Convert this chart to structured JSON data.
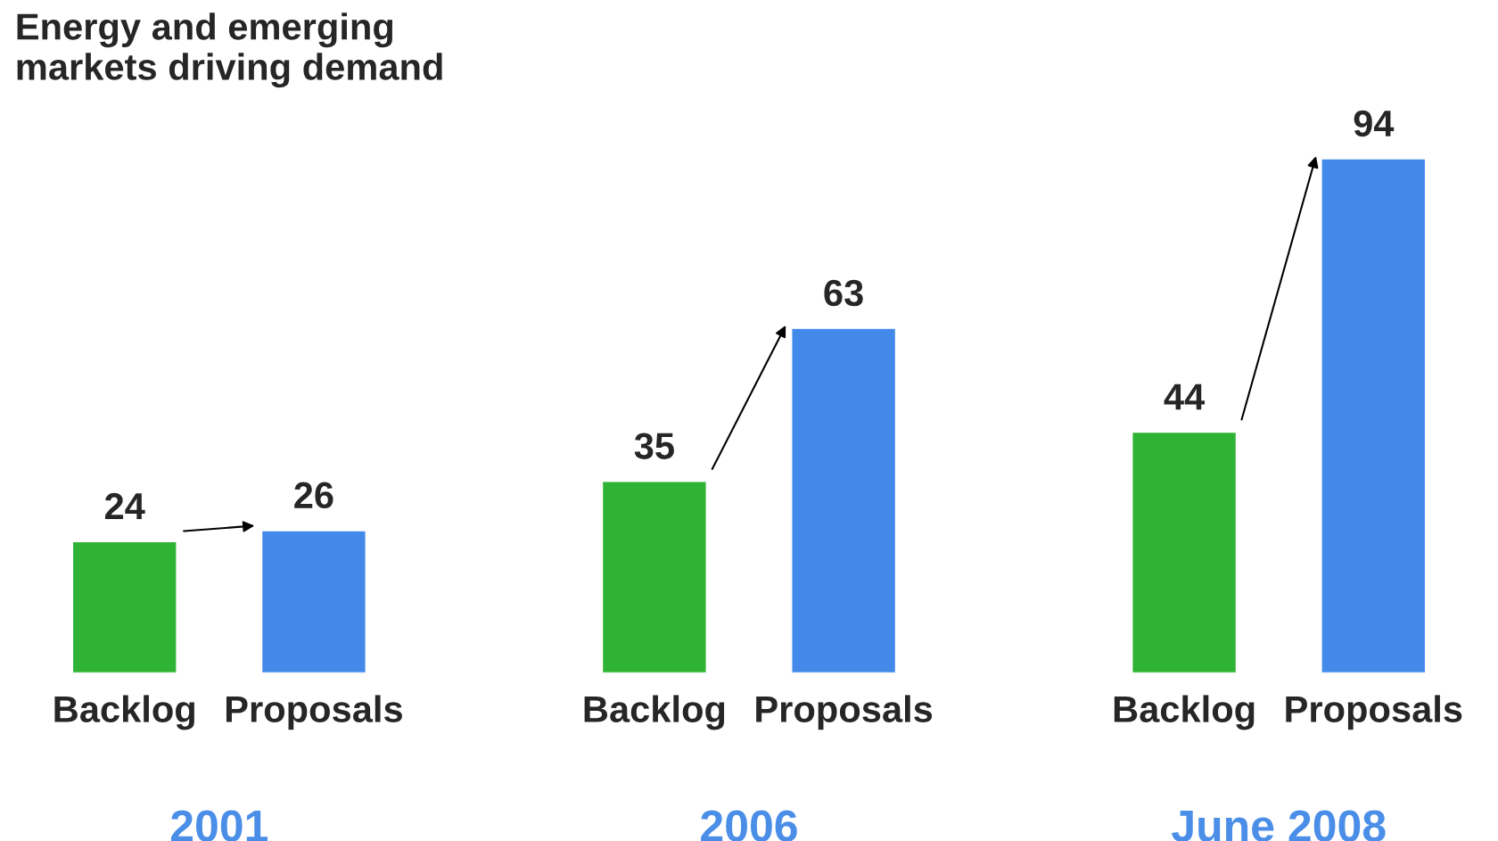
{
  "chart_data": {
    "type": "bar",
    "title": "Energy and emerging\nmarkets driving demand",
    "categories": [
      "Backlog",
      "Proposals",
      "Backlog",
      "Proposals",
      "Backlog",
      "Proposals"
    ],
    "values": [
      24,
      26,
      35,
      63,
      44,
      94
    ],
    "colors": [
      "#2eb335",
      "#4289ea",
      "#2eb335",
      "#4289ea",
      "#2eb335",
      "#4289ea"
    ],
    "data_labels": true,
    "annotations": [
      "2001",
      "2006",
      "June 2008"
    ],
    "tick_labels": "x",
    "grid": false,
    "legend": false
  }
}
